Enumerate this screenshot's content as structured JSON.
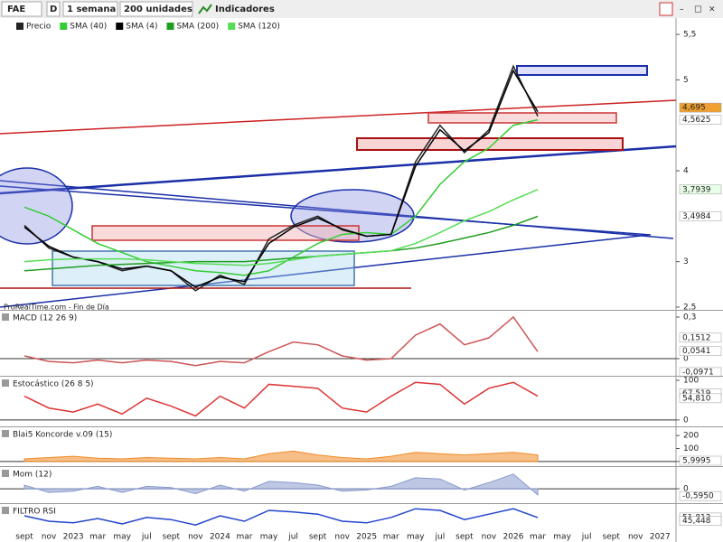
{
  "toolbar": {
    "symbol": "FAE",
    "mode": "D",
    "period": "1 semana",
    "units": "200 unidades",
    "indicators": "Indicadores"
  },
  "source": "ProRealTime.com - Fin de Día",
  "chart_data": [
    {
      "type": "line",
      "categories": [
        "sept",
        "nov",
        "2023",
        "mar",
        "may",
        "jul",
        "sept",
        "nov",
        "2024",
        "mar",
        "may",
        "jul",
        "sept",
        "nov",
        "2025",
        "mar",
        "may",
        "jul",
        "sept",
        "nov",
        "2026",
        "mar",
        "may",
        "jul",
        "sept",
        "nov",
        "2027"
      ],
      "ylim": [
        2.47,
        5.61
      ],
      "yticks": [
        {
          "value": 5.5,
          "label": "5,5"
        },
        5,
        4,
        3,
        {
          "value": 2.5,
          "label": "2,5"
        }
      ],
      "series": [
        {
          "name": "Precio",
          "color": "#222222",
          "values": [
            3.4,
            3.15,
            3.05,
            3.0,
            2.9,
            2.95,
            2.9,
            2.68,
            2.85,
            2.75,
            3.25,
            3.4,
            3.5,
            3.35,
            3.28,
            3.3,
            4.1,
            4.5,
            4.2,
            4.45,
            5.15,
            4.6,
            null,
            null,
            null,
            null,
            null
          ]
        },
        {
          "name": "SMA (40)",
          "color": "#33cc33",
          "values": [
            3.6,
            3.5,
            3.35,
            3.2,
            3.1,
            3.0,
            2.95,
            2.9,
            2.88,
            2.85,
            2.9,
            3.05,
            3.2,
            3.3,
            3.32,
            3.3,
            3.5,
            3.85,
            4.1,
            4.25,
            4.5,
            4.56,
            null,
            null,
            null,
            null,
            null
          ]
        },
        {
          "name": "SMA (4)",
          "color": "#000000",
          "values": [
            3.38,
            3.17,
            3.05,
            3.0,
            2.92,
            2.95,
            2.9,
            2.72,
            2.83,
            2.78,
            3.2,
            3.38,
            3.48,
            3.36,
            3.28,
            3.3,
            4.05,
            4.45,
            4.22,
            4.42,
            5.1,
            4.65,
            null,
            null,
            null,
            null,
            null
          ]
        },
        {
          "name": "SMA (200)",
          "color": "#1e9e1e",
          "values": [
            2.9,
            2.92,
            2.94,
            2.96,
            2.97,
            2.98,
            2.99,
            3.0,
            3.0,
            3.0,
            3.02,
            3.04,
            3.06,
            3.08,
            3.1,
            3.12,
            3.15,
            3.2,
            3.26,
            3.32,
            3.4,
            3.4984,
            null,
            null,
            null,
            null,
            null
          ]
        },
        {
          "name": "SMA (120)",
          "color": "#55dd55",
          "values": [
            3.0,
            3.02,
            3.03,
            3.03,
            3.03,
            3.02,
            3.0,
            2.98,
            2.97,
            2.96,
            2.98,
            3.02,
            3.06,
            3.08,
            3.1,
            3.12,
            3.2,
            3.32,
            3.45,
            3.55,
            3.68,
            3.7939,
            null,
            null,
            null,
            null,
            null
          ]
        }
      ],
      "markers": [
        {
          "value": 4.695,
          "label": "4,695",
          "color": "#f0a030"
        },
        {
          "value": 4.5625,
          "label": "4,5625",
          "color": "#ffffff"
        },
        {
          "value": 3.7939,
          "label": "3,7939",
          "color": "#e8ffe8"
        },
        {
          "value": 3.4984,
          "label": "3,4984",
          "color": "#ffffff"
        }
      ]
    },
    {
      "type": "line",
      "title": "MACD (12 26 9)",
      "color": "#cc5555",
      "ylim": [
        -0.117,
        0.339
      ],
      "yticks": [
        {
          "value": 0.3,
          "label": "0,3"
        },
        0
      ],
      "values": [
        0.02,
        -0.02,
        -0.03,
        -0.01,
        -0.03,
        -0.01,
        -0.02,
        -0.05,
        -0.02,
        -0.03,
        0.05,
        0.12,
        0.1,
        0.02,
        -0.01,
        0.0,
        0.17,
        0.25,
        0.1,
        0.15,
        0.3,
        0.05,
        null,
        null,
        null,
        null,
        null
      ],
      "markers": [
        {
          "value": 0.1512,
          "label": "0,1512",
          "color": "#ffffff"
        },
        {
          "value": 0.0541,
          "label": "0,0541",
          "color": "#ffffff"
        },
        {
          "value": -0.0971,
          "label": "-0,0971",
          "color": "#ffffff"
        }
      ]
    },
    {
      "type": "line",
      "title": "Estocástico (26 8 5)",
      "color": "#dd3333",
      "ylim": [
        -14,
        107
      ],
      "yticks": [
        100,
        0
      ],
      "values": [
        60,
        30,
        20,
        40,
        15,
        55,
        35,
        10,
        60,
        30,
        90,
        85,
        80,
        30,
        20,
        60,
        95,
        90,
        40,
        80,
        95,
        60,
        null,
        null,
        null,
        null,
        null
      ],
      "markers": [
        {
          "value": 67.519,
          "label": "67,519",
          "color": "#ffffff"
        },
        {
          "value": 54.81,
          "label": "54,810",
          "color": "#ffffff"
        }
      ]
    },
    {
      "type": "area",
      "title": "Blai5 Koncorde v.09 (15)",
      "color": "#f08a24",
      "ylim": [
        -29,
        257
      ],
      "yticks": [
        200,
        100,
        0
      ],
      "values": [
        20,
        30,
        40,
        25,
        20,
        30,
        25,
        20,
        30,
        20,
        60,
        80,
        50,
        30,
        20,
        40,
        70,
        60,
        50,
        60,
        70,
        50,
        null,
        null,
        null,
        null,
        null
      ],
      "markers": [
        {
          "value": 5.9995,
          "label": "5,9995",
          "color": "#ffffff"
        }
      ]
    },
    {
      "type": "area",
      "title": "Mom (12)",
      "color": "#8899cc",
      "ylim": [
        -1.1,
        1.7
      ],
      "yticks": [
        0
      ],
      "values": [
        0.3,
        -0.3,
        -0.2,
        0.2,
        -0.3,
        0.2,
        0.1,
        -0.4,
        0.3,
        -0.2,
        0.6,
        0.5,
        0.3,
        -0.2,
        -0.1,
        0.2,
        0.9,
        0.8,
        -0.1,
        0.5,
        1.2,
        -0.5,
        null,
        null,
        null,
        null,
        null
      ],
      "markers": [
        {
          "value": -0.595,
          "label": "-0,5950",
          "color": "#ffffff"
        }
      ]
    },
    {
      "type": "line",
      "title": "FILTRO RSI",
      "color": "#2244cc",
      "ylim": [
        30,
        75
      ],
      "yticks": [],
      "values": [
        55,
        45,
        42,
        50,
        40,
        52,
        48,
        38,
        55,
        45,
        65,
        62,
        58,
        45,
        42,
        52,
        68,
        65,
        48,
        58,
        68,
        51.813,
        null,
        null,
        null,
        null,
        null
      ],
      "markers": [
        {
          "value": 51.813,
          "label": "51,813",
          "color": "#ffffff"
        },
        {
          "value": 45.448,
          "label": "45,448",
          "color": "#ffffff"
        }
      ]
    }
  ]
}
